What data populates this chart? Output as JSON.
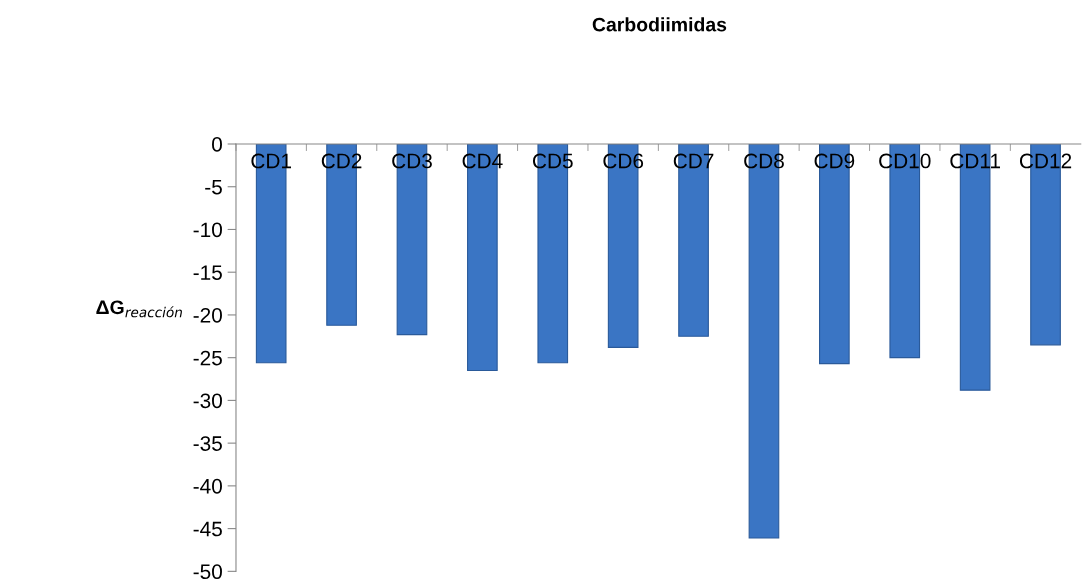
{
  "chart_data": {
    "type": "bar",
    "title": "Carbodiimidas",
    "ylabel": "ΔG$_{reacción}$",
    "categories": [
      "CD1",
      "CD2",
      "CD3",
      "CD4",
      "CD5",
      "CD6",
      "CD7",
      "CD8",
      "CD9",
      "CD10",
      "CD11",
      "CD12"
    ],
    "values": [
      -25.6,
      -21.2,
      -22.3,
      -26.5,
      -25.6,
      -23.8,
      -22.5,
      -46.1,
      -25.7,
      -25.0,
      -28.8,
      -23.5
    ],
    "color": "#3a75c4",
    "ylim": [
      -50,
      0
    ],
    "yticks": [
      -50,
      -45,
      -40,
      -35,
      -30,
      -25,
      -20,
      -15,
      -10,
      -5,
      0
    ],
    "grid": false
  }
}
